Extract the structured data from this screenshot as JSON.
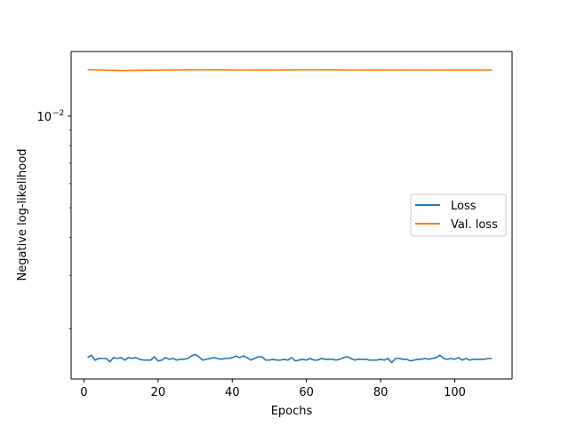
{
  "chart_data": {
    "type": "line",
    "xlabel": "Epochs",
    "ylabel": "Negative log-likelihood",
    "yscale": "log",
    "xlim": [
      -3.45,
      115.45
    ],
    "ylim": [
      0.00137,
      0.0163
    ],
    "xticks": [
      0,
      20,
      40,
      60,
      80,
      100
    ],
    "yticks": [
      {
        "value": 0.01,
        "base": "10",
        "exponent": "−2"
      }
    ],
    "grid": false,
    "legend_position": "center-right",
    "series": [
      {
        "name": "Loss",
        "color": "#1f77b4",
        "x": [
          1,
          2,
          3,
          4,
          5,
          6,
          7,
          8,
          9,
          10,
          11,
          12,
          13,
          14,
          15,
          16,
          17,
          18,
          19,
          20,
          21,
          22,
          23,
          24,
          25,
          26,
          27,
          28,
          29,
          30,
          31,
          32,
          33,
          34,
          35,
          36,
          37,
          38,
          39,
          40,
          41,
          42,
          43,
          44,
          45,
          46,
          47,
          48,
          49,
          50,
          51,
          52,
          53,
          54,
          55,
          56,
          57,
          58,
          59,
          60,
          61,
          62,
          63,
          64,
          65,
          66,
          67,
          68,
          69,
          70,
          71,
          72,
          73,
          74,
          75,
          76,
          77,
          78,
          79,
          80,
          81,
          82,
          83,
          84,
          85,
          86,
          87,
          88,
          89,
          90,
          91,
          92,
          93,
          94,
          95,
          96,
          97,
          98,
          99,
          100,
          101,
          102,
          103,
          104,
          105,
          106,
          107,
          108,
          109,
          110
        ],
        "values": [
          0.00161,
          0.00164,
          0.00158,
          0.0016,
          0.0016,
          0.0016,
          0.00156,
          0.00161,
          0.0016,
          0.00161,
          0.00158,
          0.00161,
          0.0016,
          0.00161,
          0.00159,
          0.00158,
          0.00158,
          0.00158,
          0.00162,
          0.00157,
          0.00158,
          0.00161,
          0.00159,
          0.0016,
          0.00158,
          0.00159,
          0.00159,
          0.0016,
          0.00163,
          0.00165,
          0.00162,
          0.00158,
          0.00159,
          0.0016,
          0.00161,
          0.0016,
          0.00159,
          0.0016,
          0.0016,
          0.00161,
          0.00163,
          0.00161,
          0.00163,
          0.00161,
          0.00158,
          0.0016,
          0.00162,
          0.00162,
          0.00158,
          0.00158,
          0.00159,
          0.00158,
          0.00158,
          0.00159,
          0.00158,
          0.00161,
          0.00157,
          0.00158,
          0.00159,
          0.00158,
          0.0016,
          0.00158,
          0.00158,
          0.0016,
          0.00159,
          0.00159,
          0.00159,
          0.00158,
          0.00159,
          0.00161,
          0.00162,
          0.0016,
          0.00158,
          0.00159,
          0.00159,
          0.00159,
          0.00158,
          0.00158,
          0.00158,
          0.00159,
          0.00158,
          0.0016,
          0.00155,
          0.0016,
          0.0016,
          0.00159,
          0.00159,
          0.00157,
          0.00158,
          0.00159,
          0.00159,
          0.0016,
          0.00159,
          0.0016,
          0.00161,
          0.00164,
          0.0016,
          0.00159,
          0.0016,
          0.00159,
          0.00161,
          0.00158,
          0.0016,
          0.00158,
          0.00159,
          0.00159,
          0.00159,
          0.00159,
          0.0016,
          0.0016
        ]
      },
      {
        "name": "Val. loss",
        "color": "#ff7f0e",
        "x": [
          1,
          10,
          20,
          30,
          40,
          50,
          60,
          70,
          80,
          90,
          100,
          110
        ],
        "values": [
          0.0142,
          0.0141,
          0.01415,
          0.01418,
          0.01417,
          0.01416,
          0.01418,
          0.01417,
          0.01416,
          0.01417,
          0.01416,
          0.01416
        ]
      }
    ]
  }
}
